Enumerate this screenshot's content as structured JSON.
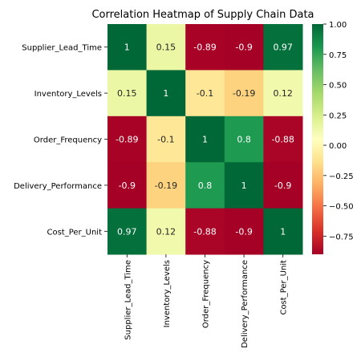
{
  "chart_data": {
    "type": "heatmap",
    "title": "Correlation Heatmap of Supply Chain Data",
    "xlabel": "",
    "ylabel": "",
    "labels": [
      "Supplier_Lead_Time",
      "Inventory_Levels",
      "Order_Frequency",
      "Delivery_Performance",
      "Cost_Per_Unit"
    ],
    "matrix": [
      [
        1,
        0.15,
        -0.89,
        -0.9,
        0.97
      ],
      [
        0.15,
        1,
        -0.1,
        -0.19,
        0.12
      ],
      [
        -0.89,
        -0.1,
        1,
        0.8,
        -0.88
      ],
      [
        -0.9,
        -0.19,
        0.8,
        1,
        -0.9
      ],
      [
        0.97,
        0.12,
        -0.88,
        -0.9,
        1
      ]
    ],
    "colormap": "RdYlGn",
    "vmin": -0.9,
    "vmax": 1.0,
    "colorbar_ticks": [
      "1.00",
      "0.75",
      "0.50",
      "0.25",
      "0.00",
      "−0.25",
      "−0.50",
      "−0.75"
    ],
    "colorbar_tick_values": [
      1.0,
      0.75,
      0.5,
      0.25,
      0.0,
      -0.25,
      -0.5,
      -0.75
    ]
  }
}
